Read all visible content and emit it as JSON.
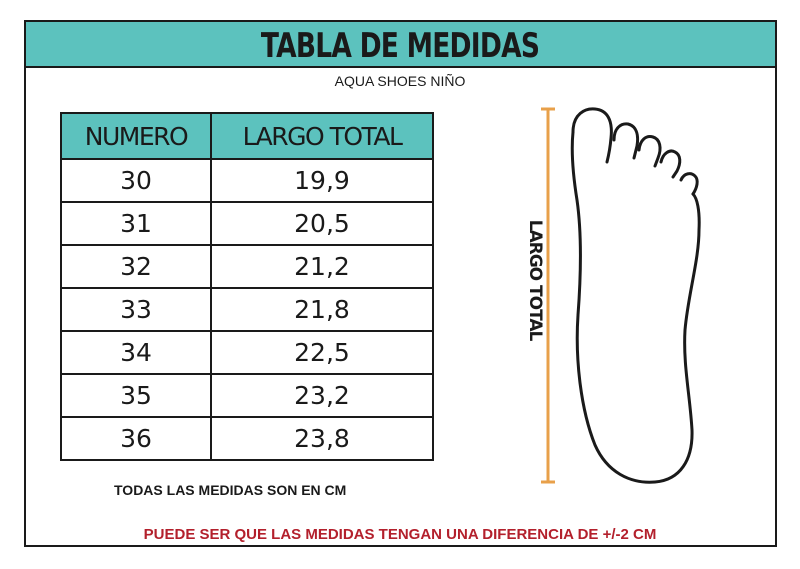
{
  "header": {
    "title": "TABLA DE MEDIDAS",
    "subtitle": "AQUA SHOES NIÑO"
  },
  "table": {
    "columns": [
      "NUMERO",
      "LARGO TOTAL"
    ],
    "rows": [
      {
        "numero": "30",
        "largo": "19,9"
      },
      {
        "numero": "31",
        "largo": "20,5"
      },
      {
        "numero": "32",
        "largo": "21,2"
      },
      {
        "numero": "33",
        "largo": "21,8"
      },
      {
        "numero": "34",
        "largo": "22,5"
      },
      {
        "numero": "35",
        "largo": "23,2"
      },
      {
        "numero": "36",
        "largo": "23,8"
      }
    ]
  },
  "diagram": {
    "measure_label": "LARGO TOTAL",
    "measure_line_color": "#e8a04a"
  },
  "notes": {
    "units": "TODAS LAS MEDIDAS SON EN CM",
    "warning": "PUEDE SER QUE LAS MEDIDAS TENGAN UNA DIFERENCIA DE +/-2 CM"
  },
  "colors": {
    "accent": "#5cc2be",
    "warning": "#b3202c",
    "ink": "#1a1a1a"
  }
}
